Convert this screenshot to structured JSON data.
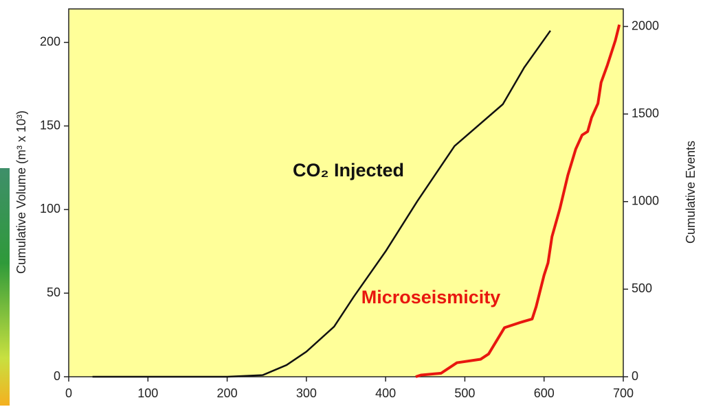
{
  "chart_data": {
    "type": "line",
    "y_label": "Cumulative Volume (m³ x 10³)",
    "y2_label": "Cumulative Events",
    "annotations": [
      "CO₂ Injected",
      "Microseismicity"
    ],
    "series": [
      {
        "name": "CO₂ Injected",
        "color": "#111111",
        "x": [
          30,
          200,
          245,
          275,
          300,
          335,
          360,
          400,
          440,
          487,
          548,
          575,
          608
        ],
        "values": [
          0,
          0,
          1,
          7,
          15,
          30,
          48,
          75,
          105,
          138,
          163,
          185,
          207
        ]
      },
      {
        "name": "Microseismicity",
        "color": "#e8170f",
        "axis": "y2",
        "x": [
          438,
          445,
          470,
          490,
          520,
          530,
          550,
          570,
          585,
          590,
          600,
          605,
          610,
          620,
          630,
          640,
          648,
          655,
          660,
          668,
          672,
          680,
          690,
          695
        ],
        "values": [
          0,
          10,
          20,
          80,
          100,
          130,
          280,
          310,
          330,
          400,
          580,
          650,
          800,
          960,
          1150,
          1300,
          1380,
          1400,
          1480,
          1560,
          1680,
          1780,
          1920,
          2010
        ]
      }
    ],
    "xlim": [
      0,
      700
    ],
    "xticks": [
      0,
      100,
      200,
      300,
      400,
      500,
      600,
      700
    ],
    "ylim": [
      0,
      220
    ],
    "yticks": [
      0,
      50,
      100,
      150,
      200
    ],
    "y2lim": [
      0,
      2100
    ],
    "y2ticks": [
      0,
      500,
      1000,
      1500,
      2000
    ],
    "background": "#ffff99",
    "grid": false
  }
}
